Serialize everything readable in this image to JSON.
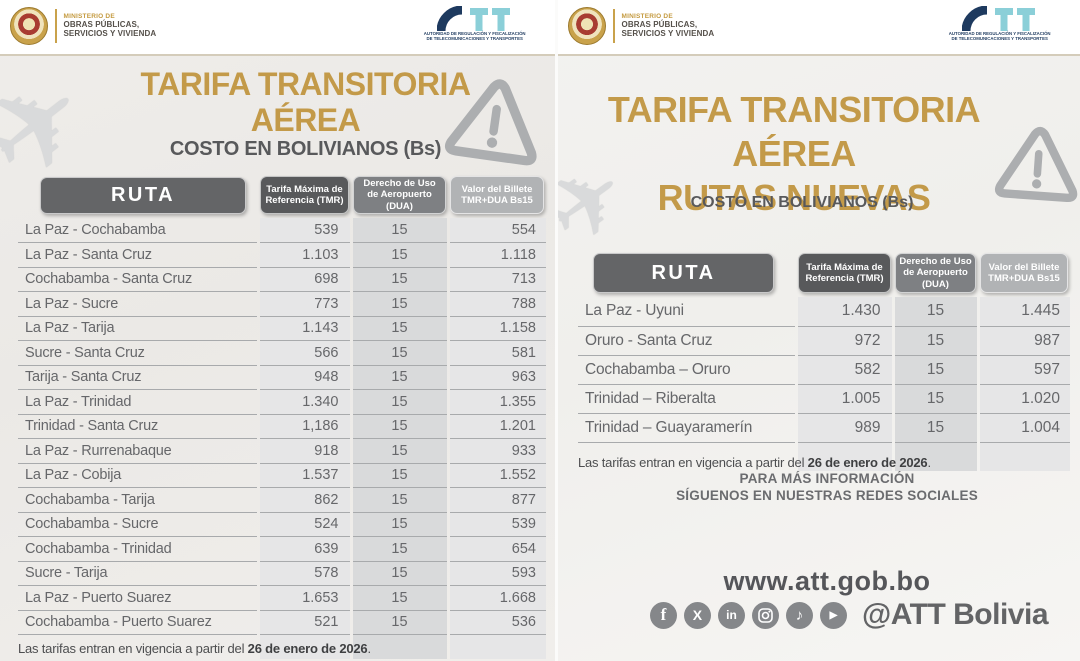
{
  "header": {
    "ministry": {
      "line1": "MINISTERIO DE",
      "line2": "OBRAS PÚBLICAS,",
      "line3": "SERVICIOS Y VIVIENDA"
    },
    "att": {
      "tagline1": "AUTORIDAD DE REGULACIÓN Y FISCALIZACIÓN",
      "tagline2": "DE TELECOMUNICACIONES Y TRANSPORTES"
    }
  },
  "left": {
    "title_line1": "TARIFA TRANSITORIA",
    "title_line2": "AÉREA",
    "subtitle": "COSTO EN BOLIVIANOS (Bs)",
    "table": {
      "route_header": "RUTA",
      "col_tmr": "Tarifa Máxima de Referencia (TMR)",
      "col_dua": "Derecho de Uso de Aeropuerto (DUA)",
      "col_total": "Valor del Billete TMR+DUA Bs15",
      "rows": [
        {
          "route": "La Paz - Cochabamba",
          "tmr": "539",
          "dua": "15",
          "total": "554"
        },
        {
          "route": "La Paz - Santa Cruz",
          "tmr": "1.103",
          "dua": "15",
          "total": "1.118"
        },
        {
          "route": "Cochabamba - Santa Cruz",
          "tmr": "698",
          "dua": "15",
          "total": "713"
        },
        {
          "route": "La Paz - Sucre",
          "tmr": "773",
          "dua": "15",
          "total": "788"
        },
        {
          "route": "La Paz - Tarija",
          "tmr": "1.143",
          "dua": "15",
          "total": "1.158"
        },
        {
          "route": "Sucre - Santa Cruz",
          "tmr": "566",
          "dua": "15",
          "total": "581"
        },
        {
          "route": "Tarija - Santa Cruz",
          "tmr": "948",
          "dua": "15",
          "total": "963"
        },
        {
          "route": "La Paz - Trinidad",
          "tmr": "1.340",
          "dua": "15",
          "total": "1.355"
        },
        {
          "route": "Trinidad - Santa Cruz",
          "tmr": "1,186",
          "dua": "15",
          "total": "1.201"
        },
        {
          "route": "La Paz - Rurrenabaque",
          "tmr": "918",
          "dua": "15",
          "total": "933"
        },
        {
          "route": "La Paz - Cobija",
          "tmr": "1.537",
          "dua": "15",
          "total": "1.552"
        },
        {
          "route": "Cochabamba - Tarija",
          "tmr": "862",
          "dua": "15",
          "total": "877"
        },
        {
          "route": "Cochabamba - Sucre",
          "tmr": "524",
          "dua": "15",
          "total": "539"
        },
        {
          "route": "Cochabamba - Trinidad",
          "tmr": "639",
          "dua": "15",
          "total": "654"
        },
        {
          "route": "Sucre - Tarija",
          "tmr": "578",
          "dua": "15",
          "total": "593"
        },
        {
          "route": "La Paz - Puerto Suarez",
          "tmr": "1.653",
          "dua": "15",
          "total": "1.668"
        },
        {
          "route": "Cochabamba - Puerto Suarez",
          "tmr": "521",
          "dua": "15",
          "total": "536"
        }
      ]
    },
    "notice_prefix": "Las tarifas entran en vigencia a partir del ",
    "notice_date": "26 de enero de 2026",
    "notice_suffix": "."
  },
  "right": {
    "title_line1": "TARIFA TRANSITORIA AÉREA",
    "title_line2": "RUTAS NUEVAS",
    "subtitle": "COSTO EN BOLIVIANOS (Bs)",
    "table": {
      "route_header": "RUTA",
      "col_tmr": "Tarifa Máxima de Referencia (TMR)",
      "col_dua": "Derecho de Uso de Aeropuerto (DUA)",
      "col_total": "Valor del Billete TMR+DUA Bs15",
      "rows": [
        {
          "route": "La Paz - Uyuni",
          "tmr": "1.430",
          "dua": "15",
          "total": "1.445"
        },
        {
          "route": "Oruro - Santa Cruz",
          "tmr": "972",
          "dua": "15",
          "total": "987"
        },
        {
          "route": "Cochabamba – Oruro",
          "tmr": "582",
          "dua": "15",
          "total": "597"
        },
        {
          "route": "Trinidad – Riberalta",
          "tmr": "1.005",
          "dua": "15",
          "total": "1.020"
        },
        {
          "route": "Trinidad – Guayaramerín",
          "tmr": "989",
          "dua": "15",
          "total": "1.004"
        }
      ]
    },
    "notice_prefix": "Las tarifas entran en vigencia a partir del ",
    "notice_date": "26 de enero de 2026",
    "notice_suffix": ".",
    "info_line1": "PARA MÁS INFORMACIÓN",
    "info_line2": "SÍGUENOS EN NUESTRAS REDES SOCIALES",
    "website": "www.att.gob.bo",
    "social_handle": "@ATT Bolivia",
    "social": {
      "facebook_glyph": "f",
      "x_glyph": "X",
      "linkedin_glyph": "in",
      "tiktok_glyph": "♪",
      "youtube_glyph": "▶"
    }
  },
  "decor": {
    "plane_glyph": "✈"
  },
  "colors": {
    "gold": "#C39A49",
    "dark_gray": "#58595B",
    "mid_gray": "#6D6E71",
    "navy": "#1E3A5F",
    "cyan": "#8BCFD8",
    "pill_tmr": "#58595B",
    "pill_dua": "#7E8083",
    "pill_total": "#B1B3B5",
    "band_light": "#E6E6E7",
    "band_mid": "#D9DADB"
  }
}
